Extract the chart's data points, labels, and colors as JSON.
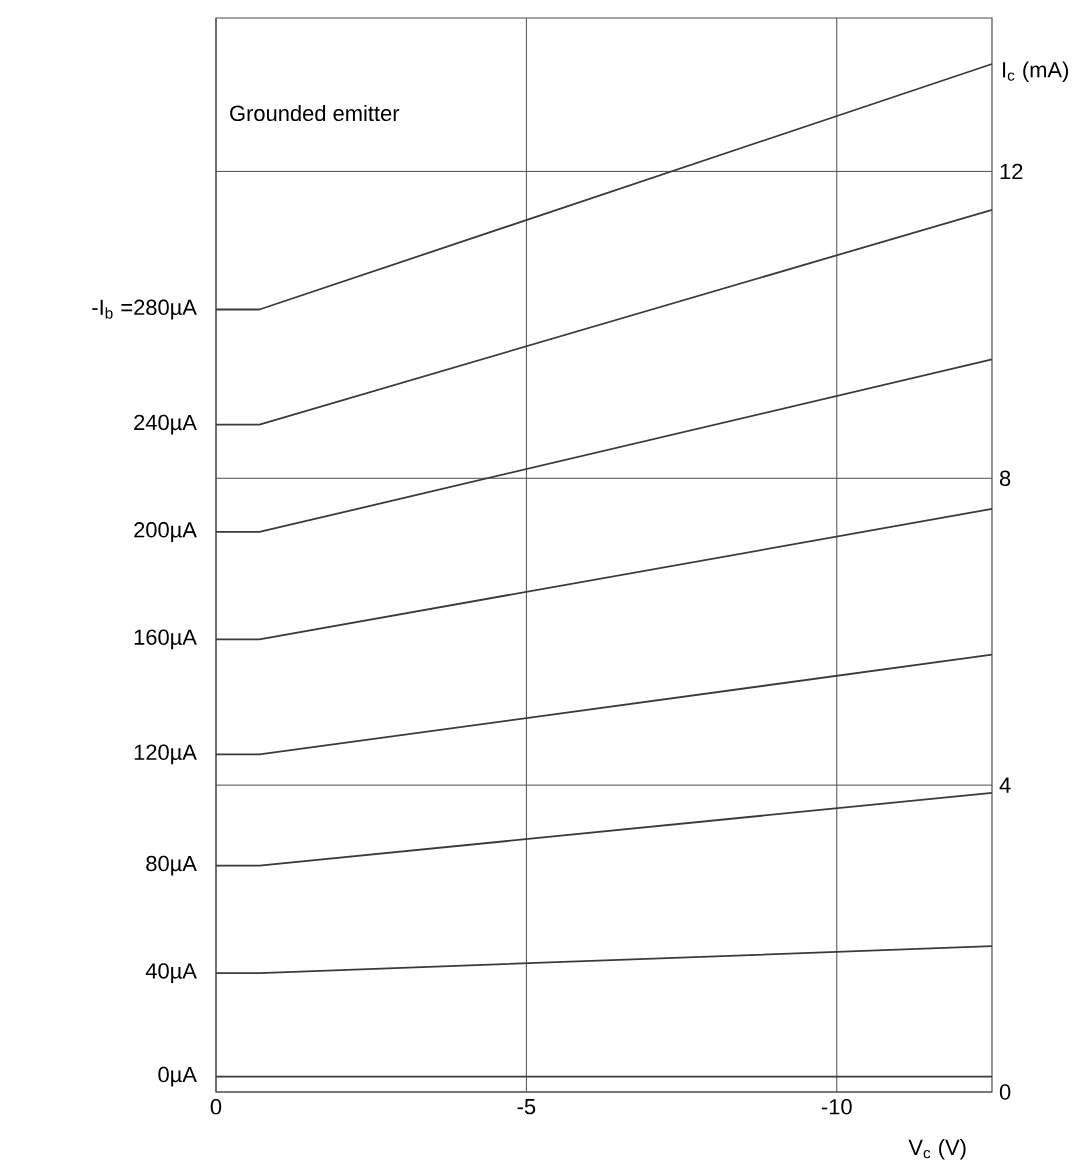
{
  "chart_data": {
    "type": "line",
    "title": "Grounded emitter",
    "xlabel": "V$_{c}$ (V)",
    "ylabel": "I$_{c}$ (mA)",
    "x": [
      0,
      -0.7,
      -12.5
    ],
    "series": [
      {
        "name": "-I$_{b}$ =280µA",
        "color": "#3a3a3a",
        "values": [
          10.2,
          10.2,
          13.4
        ]
      },
      {
        "name": "240µA",
        "color": "#3a3a3a",
        "values": [
          8.7,
          8.7,
          11.5
        ]
      },
      {
        "name": "200µA",
        "color": "#3a3a3a",
        "values": [
          7.3,
          7.3,
          9.55
        ]
      },
      {
        "name": "160µA",
        "color": "#3a3a3a",
        "values": [
          5.9,
          5.9,
          7.6
        ]
      },
      {
        "name": "120µA",
        "color": "#3a3a3a",
        "values": [
          4.4,
          4.4,
          5.7
        ]
      },
      {
        "name": "80µA",
        "color": "#3a3a3a",
        "values": [
          2.95,
          2.95,
          3.9
        ]
      },
      {
        "name": "40µA",
        "color": "#3a3a3a",
        "values": [
          1.55,
          1.55,
          1.9
        ]
      },
      {
        "name": "0µA",
        "color": "#3a3a3a",
        "values": [
          0.2,
          0.2,
          0.2
        ]
      }
    ],
    "xlim": [
      0,
      -12.5
    ],
    "ylim": [
      0,
      14
    ],
    "xticks": [
      0,
      -5,
      -10
    ],
    "yticks": [
      0,
      4,
      8,
      12
    ],
    "grid": true,
    "marker": "none",
    "line_style": "solid"
  }
}
